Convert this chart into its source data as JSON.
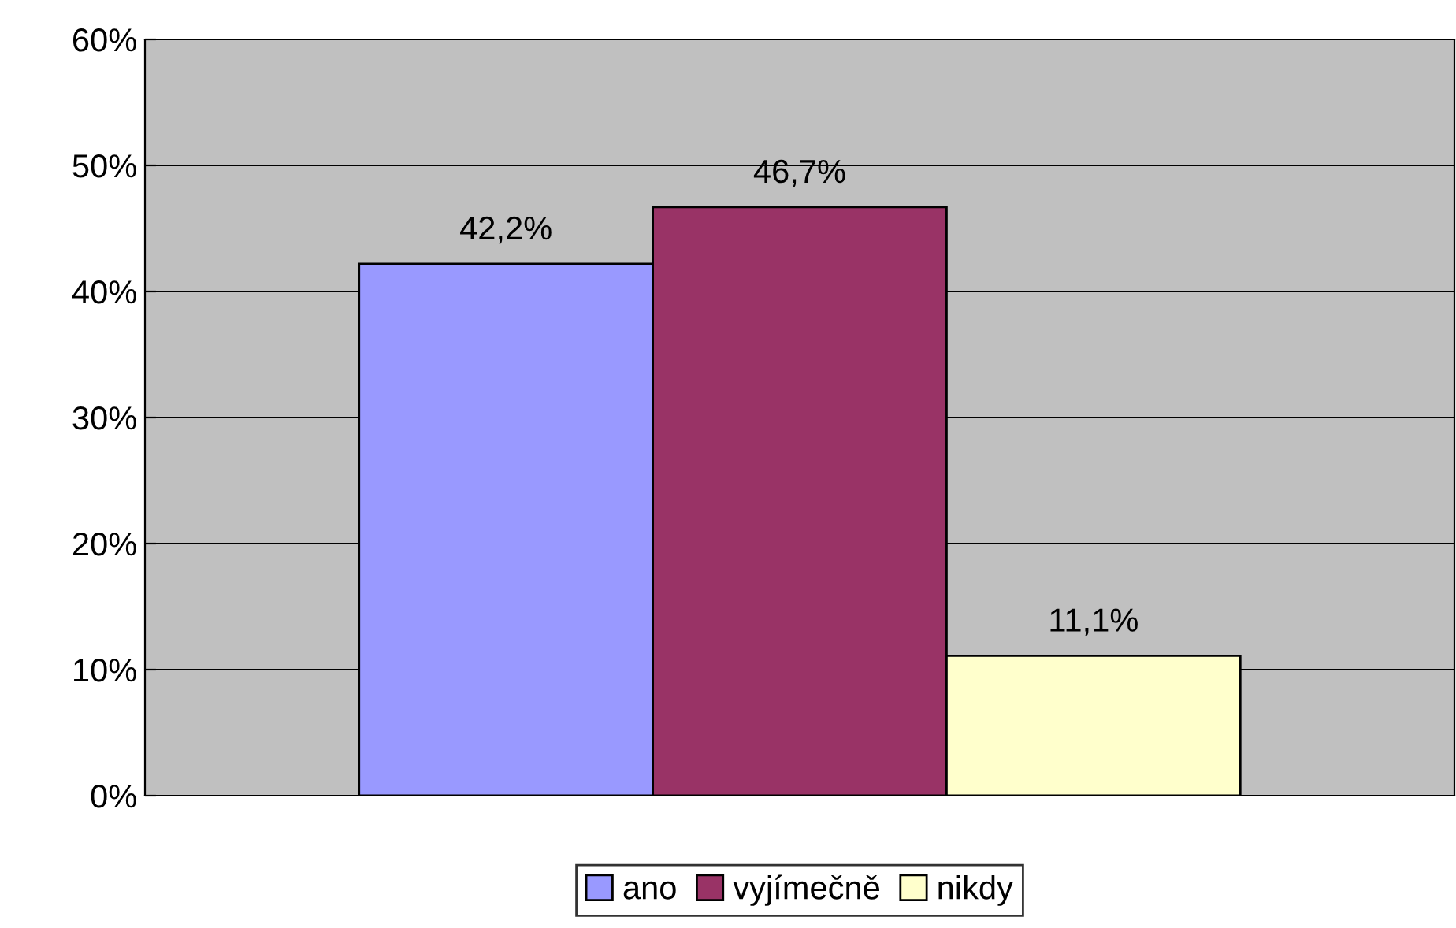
{
  "chart_data": {
    "type": "bar",
    "categories": [
      null
    ],
    "series": [
      {
        "name": "ano",
        "color": "#9999ff",
        "values": [
          42.2
        ],
        "value_labels": [
          "42,2%"
        ]
      },
      {
        "name": "vyjímečně",
        "color": "#993366",
        "values": [
          46.7
        ],
        "value_labels": [
          "46,7%"
        ]
      },
      {
        "name": "nikdy",
        "color": "#ffffcc",
        "values": [
          11.1
        ],
        "value_labels": [
          "11,1%"
        ]
      }
    ],
    "ylim": [
      0,
      60
    ],
    "yticks": [
      {
        "value": 0,
        "label": "0%"
      },
      {
        "value": 10,
        "label": "10%"
      },
      {
        "value": 20,
        "label": "20%"
      },
      {
        "value": 30,
        "label": "30%"
      },
      {
        "value": 40,
        "label": "40%"
      },
      {
        "value": 50,
        "label": "50%"
      },
      {
        "value": 60,
        "label": "60%"
      }
    ],
    "grid": "y",
    "legend": "bottom"
  }
}
